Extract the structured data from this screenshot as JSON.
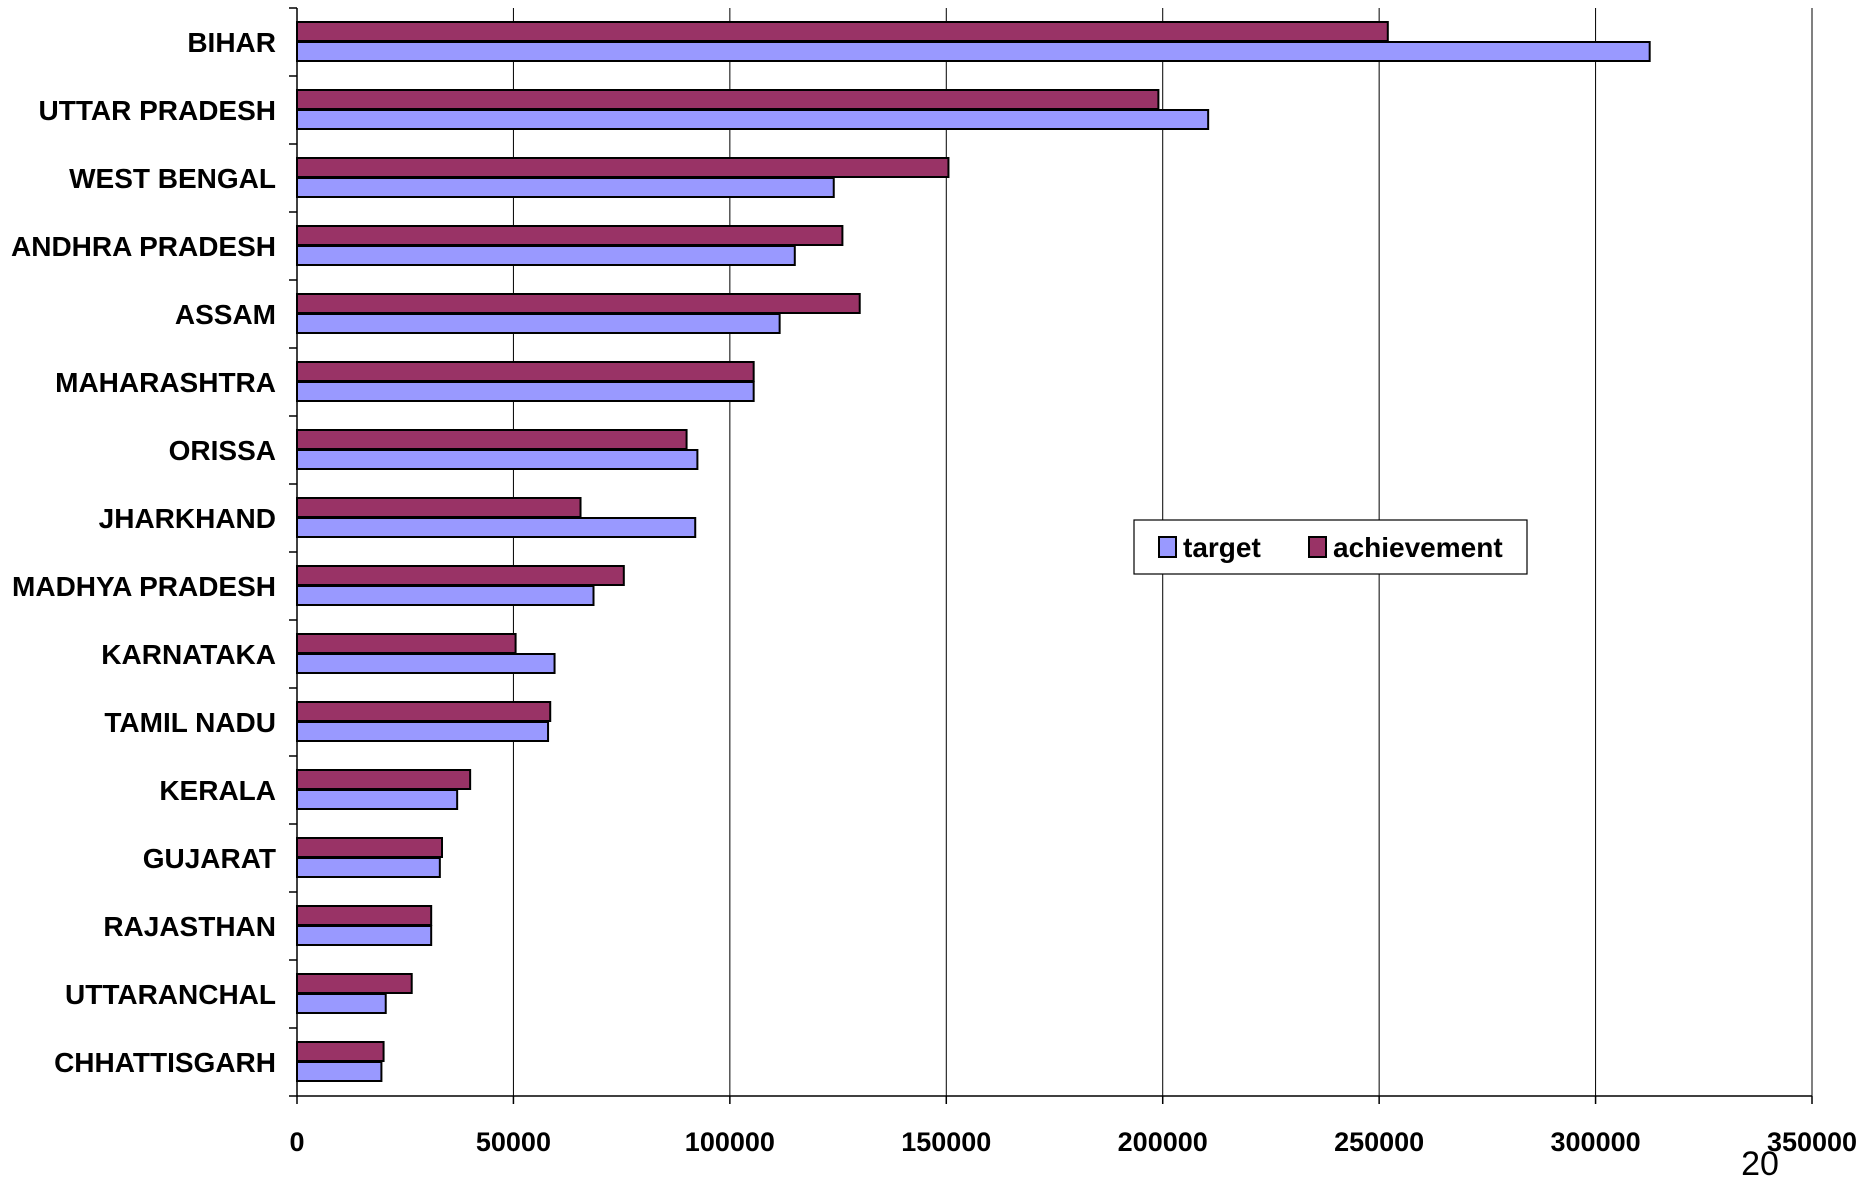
{
  "chart_data": {
    "type": "bar",
    "orientation": "horizontal",
    "categories": [
      "BIHAR",
      "UTTAR PRADESH",
      "WEST BENGAL",
      "ANDHRA PRADESH",
      "ASSAM",
      "MAHARASHTRA",
      "ORISSA",
      "JHARKHAND",
      "MADHYA PRADESH",
      "KARNATAKA",
      "TAMIL NADU",
      "KERALA",
      "GUJARAT",
      "RAJASTHAN",
      "UTTARANCHAL",
      "CHHATTISGARH"
    ],
    "series": [
      {
        "name": "target",
        "color": "#9999ff",
        "values": [
          312500,
          210500,
          124000,
          115000,
          111500,
          105500,
          92500,
          92000,
          68500,
          59500,
          58000,
          37000,
          33000,
          31000,
          20500,
          19500
        ]
      },
      {
        "name": "achievement",
        "color": "#993366",
        "values": [
          252000,
          199000,
          150500,
          126000,
          130000,
          105500,
          90000,
          65500,
          75500,
          50500,
          58500,
          40000,
          33500,
          31000,
          26500,
          20000
        ]
      }
    ],
    "xlim": [
      0,
      350000
    ],
    "xticks": [
      0,
      50000,
      100000,
      150000,
      200000,
      250000,
      300000,
      350000
    ],
    "xtick_labels": [
      "0",
      "50000",
      "100000",
      "150000",
      "200000",
      "250000",
      "300000",
      "350000"
    ],
    "grid": "vertical",
    "legend_position": "right-middle"
  },
  "page_number": "20"
}
